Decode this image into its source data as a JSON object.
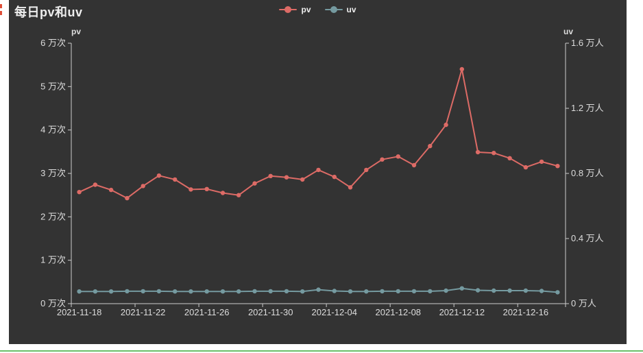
{
  "title": "每日pv和uv",
  "panel": {
    "background": "#333333"
  },
  "page": {
    "background": "#ffffff",
    "divider_color": "#6abf69",
    "left_accent_color": "#df4e38"
  },
  "legend": {
    "items": [
      {
        "label": "pv",
        "color": "#dd6b66"
      },
      {
        "label": "uv",
        "color": "#759aa0"
      }
    ]
  },
  "chart_data": {
    "type": "line",
    "title": "每日pv和uv",
    "grid": false,
    "legend_position": "top-center",
    "categories": [
      "2021-11-18",
      "2021-11-19",
      "2021-11-20",
      "2021-11-21",
      "2021-11-22",
      "2021-11-23",
      "2021-11-24",
      "2021-11-25",
      "2021-11-26",
      "2021-11-27",
      "2021-11-28",
      "2021-11-29",
      "2021-11-30",
      "2021-12-01",
      "2021-12-02",
      "2021-12-03",
      "2021-12-04",
      "2021-12-05",
      "2021-12-06",
      "2021-12-07",
      "2021-12-08",
      "2021-12-09",
      "2021-12-10",
      "2021-12-11",
      "2021-12-12",
      "2021-12-13",
      "2021-12-14",
      "2021-12-15",
      "2021-12-16",
      "2021-12-17",
      "2021-12-18"
    ],
    "x_tick_interval": 4,
    "x_tick_labels_shown": [
      "2021-11-18",
      "2021-11-22",
      "2021-11-26",
      "2021-11-30",
      "2021-12-04",
      "2021-12-08",
      "2021-12-12",
      "2021-12-16"
    ],
    "series": [
      {
        "name": "pv",
        "axis": "left",
        "color": "#dd6b66",
        "values": [
          2.57,
          2.74,
          2.62,
          2.43,
          2.71,
          2.95,
          2.86,
          2.63,
          2.64,
          2.55,
          2.5,
          2.77,
          2.94,
          2.91,
          2.86,
          3.08,
          2.92,
          2.68,
          3.08,
          3.32,
          3.39,
          3.19,
          3.63,
          4.12,
          5.4,
          3.49,
          3.47,
          3.35,
          3.14,
          3.27,
          3.17
        ]
      },
      {
        "name": "uv",
        "axis": "right",
        "color": "#759aa0",
        "values": [
          0.075,
          0.075,
          0.075,
          0.076,
          0.076,
          0.076,
          0.075,
          0.075,
          0.075,
          0.075,
          0.075,
          0.076,
          0.076,
          0.076,
          0.075,
          0.086,
          0.078,
          0.075,
          0.075,
          0.076,
          0.076,
          0.076,
          0.076,
          0.08,
          0.094,
          0.082,
          0.08,
          0.08,
          0.08,
          0.078,
          0.07
        ]
      }
    ],
    "y_axis_left": {
      "name": "pv",
      "unit": "万次",
      "min": 0,
      "max": 6,
      "tick_labels": [
        "0 万次",
        "1 万次",
        "2 万次",
        "3 万次",
        "4 万次",
        "5 万次",
        "6 万次"
      ]
    },
    "y_axis_right": {
      "name": "uv",
      "unit": "万人",
      "min": 0,
      "max": 1.6,
      "tick_labels": [
        "0 万人",
        "0.4 万人",
        "0.8 万人",
        "1.2 万人",
        "1.6 万人"
      ]
    },
    "axis_color": "#cccccc",
    "label_color": "#dddddd"
  }
}
